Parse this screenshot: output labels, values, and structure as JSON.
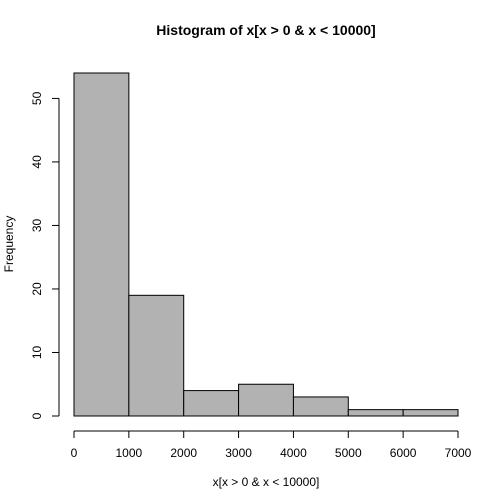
{
  "chart_data": {
    "type": "bar",
    "title": "Histogram of x[x > 0 & x < 10000]",
    "xlabel": "x[x > 0 & x < 10000]",
    "ylabel": "Frequency",
    "bins": [
      {
        "start": 0,
        "end": 1000,
        "count": 54
      },
      {
        "start": 1000,
        "end": 2000,
        "count": 19
      },
      {
        "start": 2000,
        "end": 3000,
        "count": 4
      },
      {
        "start": 3000,
        "end": 4000,
        "count": 5
      },
      {
        "start": 4000,
        "end": 5000,
        "count": 3
      },
      {
        "start": 5000,
        "end": 6000,
        "count": 1
      },
      {
        "start": 6000,
        "end": 7000,
        "count": 1
      }
    ],
    "xticks": [
      0,
      1000,
      2000,
      3000,
      4000,
      5000,
      6000,
      7000
    ],
    "yticks": [
      0,
      10,
      20,
      30,
      40,
      50
    ],
    "xlim": [
      0,
      7000
    ],
    "ylim": [
      0,
      54
    ],
    "grid": false,
    "bar_color": "#b2b2b2"
  }
}
